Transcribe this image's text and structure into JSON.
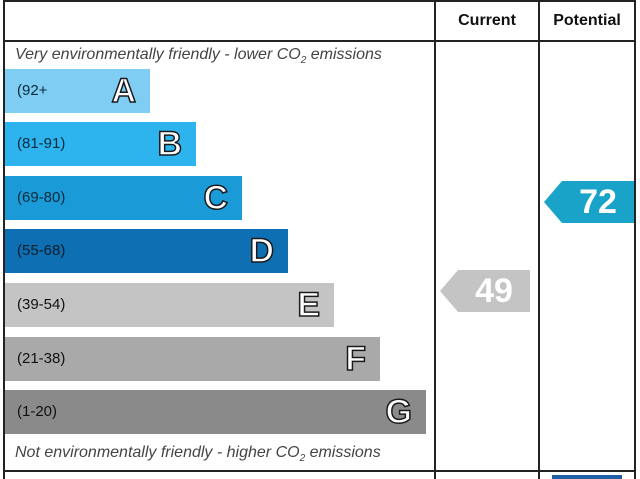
{
  "header": {
    "current_label": "Current",
    "potential_label": "Potential"
  },
  "captions": {
    "top": "Very environmentally friendly - lower CO",
    "top_suffix": " emissions",
    "bottom": "Not environmentally friendly - higher CO",
    "bottom_suffix": " emissions",
    "subscript": "2"
  },
  "chart_data": {
    "type": "bar",
    "bands": [
      {
        "range": "(92+",
        "letter": "A",
        "color": "#7fcdf2"
      },
      {
        "range": "(81-91)",
        "letter": "B",
        "color": "#2db4ef"
      },
      {
        "range": "(69-80)",
        "letter": "C",
        "color": "#1a9bd7"
      },
      {
        "range": "(55-68)",
        "letter": "D",
        "color": "#0f6fb3"
      },
      {
        "range": "(39-54)",
        "letter": "E",
        "color": "#c4c4c4"
      },
      {
        "range": "(21-38)",
        "letter": "F",
        "color": "#a9a9a9"
      },
      {
        "range": "(1-20)",
        "letter": "G",
        "color": "#8a8a8a"
      }
    ],
    "current": {
      "value": "49",
      "color": "#c4c4c4"
    },
    "potential": {
      "value": "72",
      "color": "#1aa3c9"
    }
  }
}
